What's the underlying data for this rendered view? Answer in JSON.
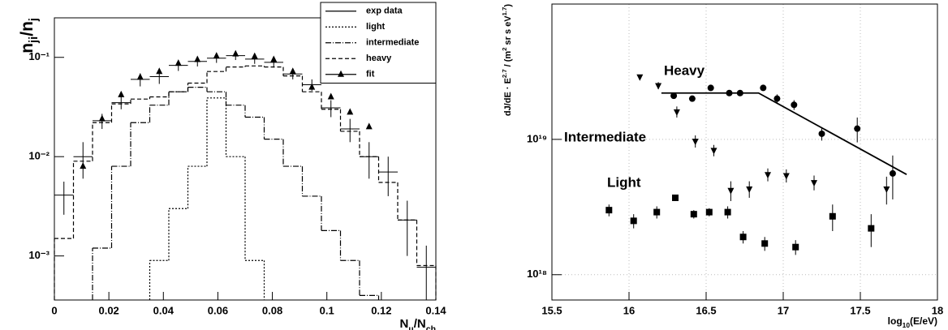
{
  "chart_data": [
    {
      "type": "histogram",
      "x_label": [
        "N",
        "μ",
        "/N",
        "ch"
      ],
      "y_label": [
        "n",
        "ji",
        "/n",
        "j"
      ],
      "xlim": [
        0,
        0.14
      ],
      "xticks": [
        0,
        0.02,
        0.04,
        0.06,
        0.08,
        0.1,
        0.12,
        0.14
      ],
      "ylim": [
        0.00036,
        0.25
      ],
      "ylog": true,
      "yticks": [
        {
          "value": 0.001,
          "label": "10⁻³"
        },
        {
          "value": 0.01,
          "label": "10⁻²"
        },
        {
          "value": 0.1,
          "label": "10⁻¹"
        }
      ],
      "grid": false,
      "legend": "upper right",
      "bins": [
        0,
        0.007,
        0.014,
        0.021,
        0.028,
        0.035,
        0.042,
        0.049,
        0.056,
        0.063,
        0.07,
        0.077,
        0.084,
        0.091,
        0.098,
        0.105,
        0.112,
        0.119,
        0.126,
        0.133,
        0.14
      ],
      "series": [
        {
          "name": "exp data",
          "marker": "cross",
          "color": "#000000",
          "values": [
            0.0041,
            0.01,
            0.023,
            0.035,
            0.06,
            0.064,
            0.083,
            0.091,
            0.098,
            0.104,
            0.096,
            0.089,
            0.068,
            0.053,
            0.031,
            0.019,
            0.01,
            0.007,
            0.0023,
            0.00077
          ],
          "errors": [
            0.0015,
            0.004,
            0.004,
            0.005,
            0.009,
            0.01,
            0.01,
            0.01,
            0.01,
            0.01,
            0.01,
            0.01,
            0.008,
            0.007,
            0.006,
            0.005,
            0.004,
            0.003,
            0.0013,
            0.0005
          ]
        },
        {
          "name": "light",
          "dash": "2,2",
          "color": "#000000",
          "values": [
            null,
            null,
            null,
            null,
            null,
            0.0009,
            0.003,
            0.008,
            0.039,
            0.01,
            0.0009,
            null,
            null,
            null,
            null,
            null,
            null,
            null,
            null,
            null
          ]
        },
        {
          "name": "intermediate",
          "dash": "7,2,1,2",
          "color": "#000000",
          "values": [
            null,
            null,
            0.0012,
            0.008,
            0.022,
            0.033,
            0.045,
            0.05,
            0.045,
            0.033,
            0.025,
            0.015,
            0.008,
            0.004,
            0.0018,
            0.0009,
            0.0004,
            null,
            null,
            null
          ]
        },
        {
          "name": "heavy",
          "dash": "5,3",
          "color": "#000000",
          "values": [
            0.0015,
            0.009,
            0.022,
            0.034,
            0.038,
            0.04,
            0.045,
            0.055,
            0.072,
            0.08,
            0.082,
            0.08,
            0.065,
            0.045,
            0.03,
            0.018,
            0.01,
            0.0055,
            0.0023,
            0.0008
          ]
        },
        {
          "name": "fit",
          "marker": "triangle",
          "color": "#000000",
          "x": [
            0.0105,
            0.0175,
            0.0245,
            0.0315,
            0.0385,
            0.0455,
            0.0525,
            0.0595,
            0.0665,
            0.0735,
            0.0805,
            0.0875,
            0.0945,
            0.1015,
            0.1085,
            0.1155
          ],
          "values": [
            0.008,
            0.024,
            0.042,
            0.063,
            0.072,
            0.087,
            0.095,
            0.103,
            0.108,
            0.102,
            0.095,
            0.072,
            0.05,
            0.04,
            0.028,
            0.02
          ]
        }
      ]
    },
    {
      "type": "scatter",
      "x_label": [
        "log",
        "10",
        "(E/eV)"
      ],
      "y_label": [
        "dJ/dE · E",
        "2.7",
        " / (m",
        "2",
        " sr s eV",
        "1.7",
        ")"
      ],
      "xlim": [
        15.5,
        18
      ],
      "xticks": [
        15.5,
        16,
        16.5,
        17,
        17.5,
        18
      ],
      "ylim": [
        6.5e+17,
        1e+20
      ],
      "ylog": true,
      "yticks": [
        {
          "value": 1e+18,
          "label": "10¹⁸"
        },
        {
          "value": 1e+19,
          "label": "10¹⁹"
        }
      ],
      "grid": true,
      "series": [
        {
          "name": "Heavy",
          "marker": "circle",
          "color": "#000000",
          "label_color": "#e8141a",
          "x": [
            16.29,
            16.41,
            16.53,
            16.65,
            16.72,
            16.87,
            16.96,
            17.07,
            17.25,
            17.48,
            17.71
          ],
          "values": [
            2.1e+19,
            2e+19,
            2.4e+19,
            2.2e+19,
            2.2e+19,
            2.4e+19,
            2e+19,
            1.8e+19,
            1.1e+19,
            1.2e+19,
            5.6e+18
          ],
          "errors": [
            1e+18,
            1e+18,
            1e+18,
            1e+18,
            1e+18,
            1e+18,
            1.5e+18,
            1.5e+18,
            1.2e+18,
            2.5e+18,
            2e+18
          ]
        },
        {
          "name": "Intermediate",
          "marker": "triangle-down",
          "color": "#000000",
          "label_color": "#1a8c1a",
          "x": [
            16.07,
            16.19,
            16.31,
            16.43,
            16.55,
            16.66,
            16.78,
            16.9,
            17.02,
            17.2,
            17.67
          ],
          "values": [
            2.9e+19,
            2.5e+19,
            1.6e+19,
            9.7e+18,
            8.3e+18,
            4.2e+18,
            4.3e+18,
            5.5e+18,
            5.4e+18,
            4.8e+18,
            4.3e+18
          ],
          "errors": [
            1e+18,
            1.5e+18,
            1.5e+18,
            1e+18,
            8e+17,
            7e+17,
            6e+17,
            6e+17,
            6e+17,
            6e+17,
            1e+18
          ]
        },
        {
          "name": "Light",
          "marker": "square",
          "color": "#000000",
          "label_color": "#1a1ae0",
          "x": [
            15.87,
            16.03,
            16.18,
            16.3,
            16.42,
            16.52,
            16.64,
            16.74,
            16.88,
            17.08,
            17.32,
            17.57
          ],
          "values": [
            3e+18,
            2.5e+18,
            2.9e+18,
            3.7e+18,
            2.8e+18,
            2.9e+18,
            2.9e+18,
            1.9e+18,
            1.7e+18,
            1.6e+18,
            2.7e+18,
            2.2e+18
          ],
          "errors": [
            3e+17,
            3e+17,
            3e+17,
            2e+17,
            2e+17,
            2e+17,
            3e+17,
            2e+17,
            2e+17,
            2e+17,
            6e+17,
            6e+17
          ]
        }
      ],
      "fit": {
        "x": [
          16.21,
          16.84,
          17.8
        ],
        "values": [
          2.2e+19,
          2.2e+19,
          5.5e+18
        ]
      }
    }
  ]
}
